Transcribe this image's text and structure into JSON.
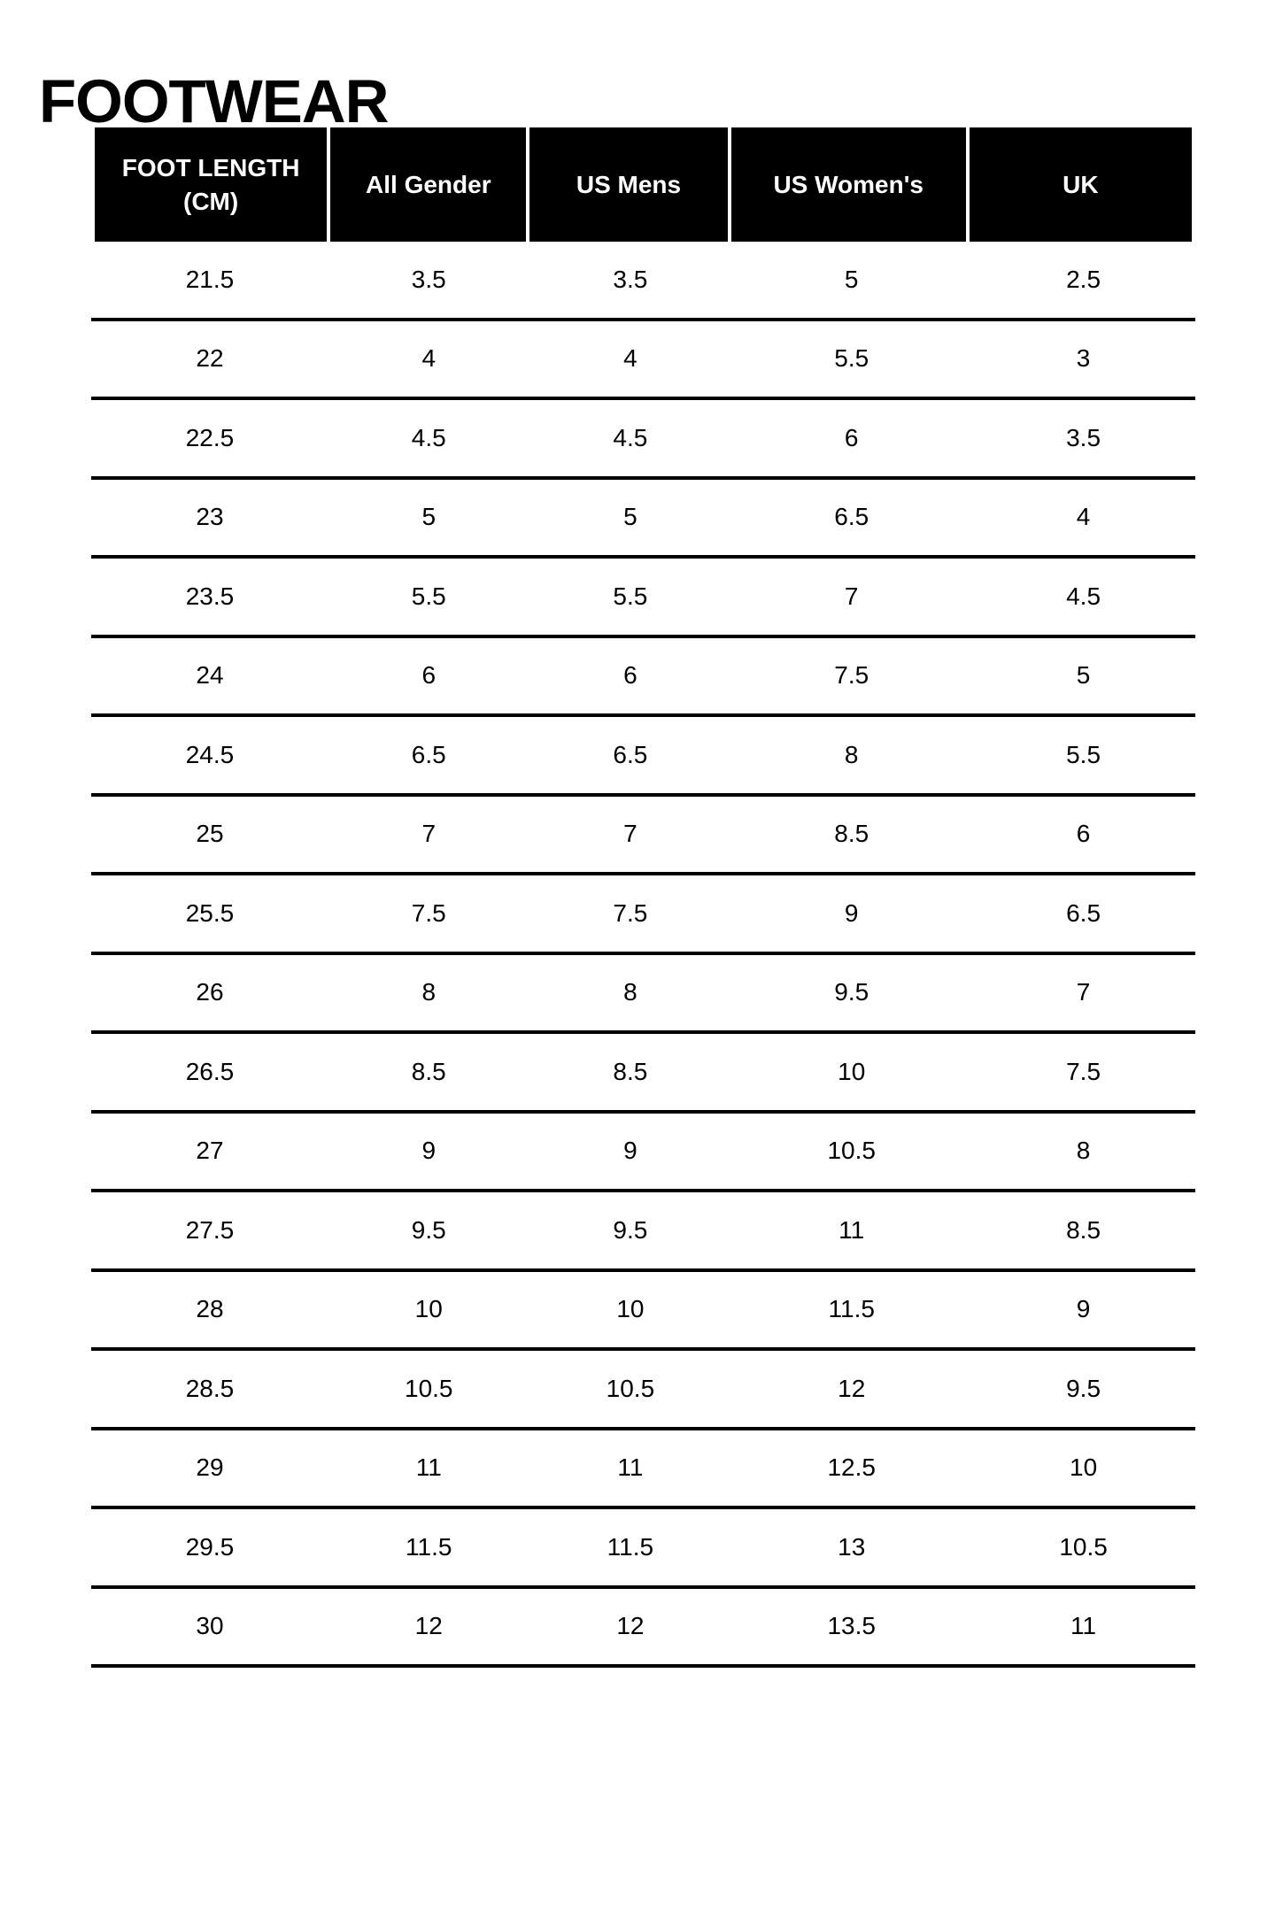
{
  "page": {
    "title": "FOOTWEAR"
  },
  "table": {
    "columns": [
      "FOOT LENGTH\n(CM)",
      "All Gender",
      "US Mens",
      "US Women's",
      "UK"
    ],
    "rows": [
      [
        "21.5",
        "3.5",
        "3.5",
        "5",
        "2.5"
      ],
      [
        "22",
        "4",
        "4",
        "5.5",
        "3"
      ],
      [
        "22.5",
        "4.5",
        "4.5",
        "6",
        "3.5"
      ],
      [
        "23",
        "5",
        "5",
        "6.5",
        "4"
      ],
      [
        "23.5",
        "5.5",
        "5.5",
        "7",
        "4.5"
      ],
      [
        "24",
        "6",
        "6",
        "7.5",
        "5"
      ],
      [
        "24.5",
        "6.5",
        "6.5",
        "8",
        "5.5"
      ],
      [
        "25",
        "7",
        "7",
        "8.5",
        "6"
      ],
      [
        "25.5",
        "7.5",
        "7.5",
        "9",
        "6.5"
      ],
      [
        "26",
        "8",
        "8",
        "9.5",
        "7"
      ],
      [
        "26.5",
        "8.5",
        "8.5",
        "10",
        "7.5"
      ],
      [
        "27",
        "9",
        "9",
        "10.5",
        "8"
      ],
      [
        "27.5",
        "9.5",
        "9.5",
        "11",
        "8.5"
      ],
      [
        "28",
        "10",
        "10",
        "11.5",
        "9"
      ],
      [
        "28.5",
        "10.5",
        "10.5",
        "12",
        "9.5"
      ],
      [
        "29",
        "11",
        "11",
        "12.5",
        "10"
      ],
      [
        "29.5",
        "11.5",
        "11.5",
        "13",
        "10.5"
      ],
      [
        "30",
        "12",
        "12",
        "13.5",
        "11"
      ]
    ],
    "colors": {
      "header_bg": "#000000",
      "header_text": "#ffffff",
      "body_text": "#000000",
      "rule": "#000000",
      "background": "#ffffff"
    }
  }
}
